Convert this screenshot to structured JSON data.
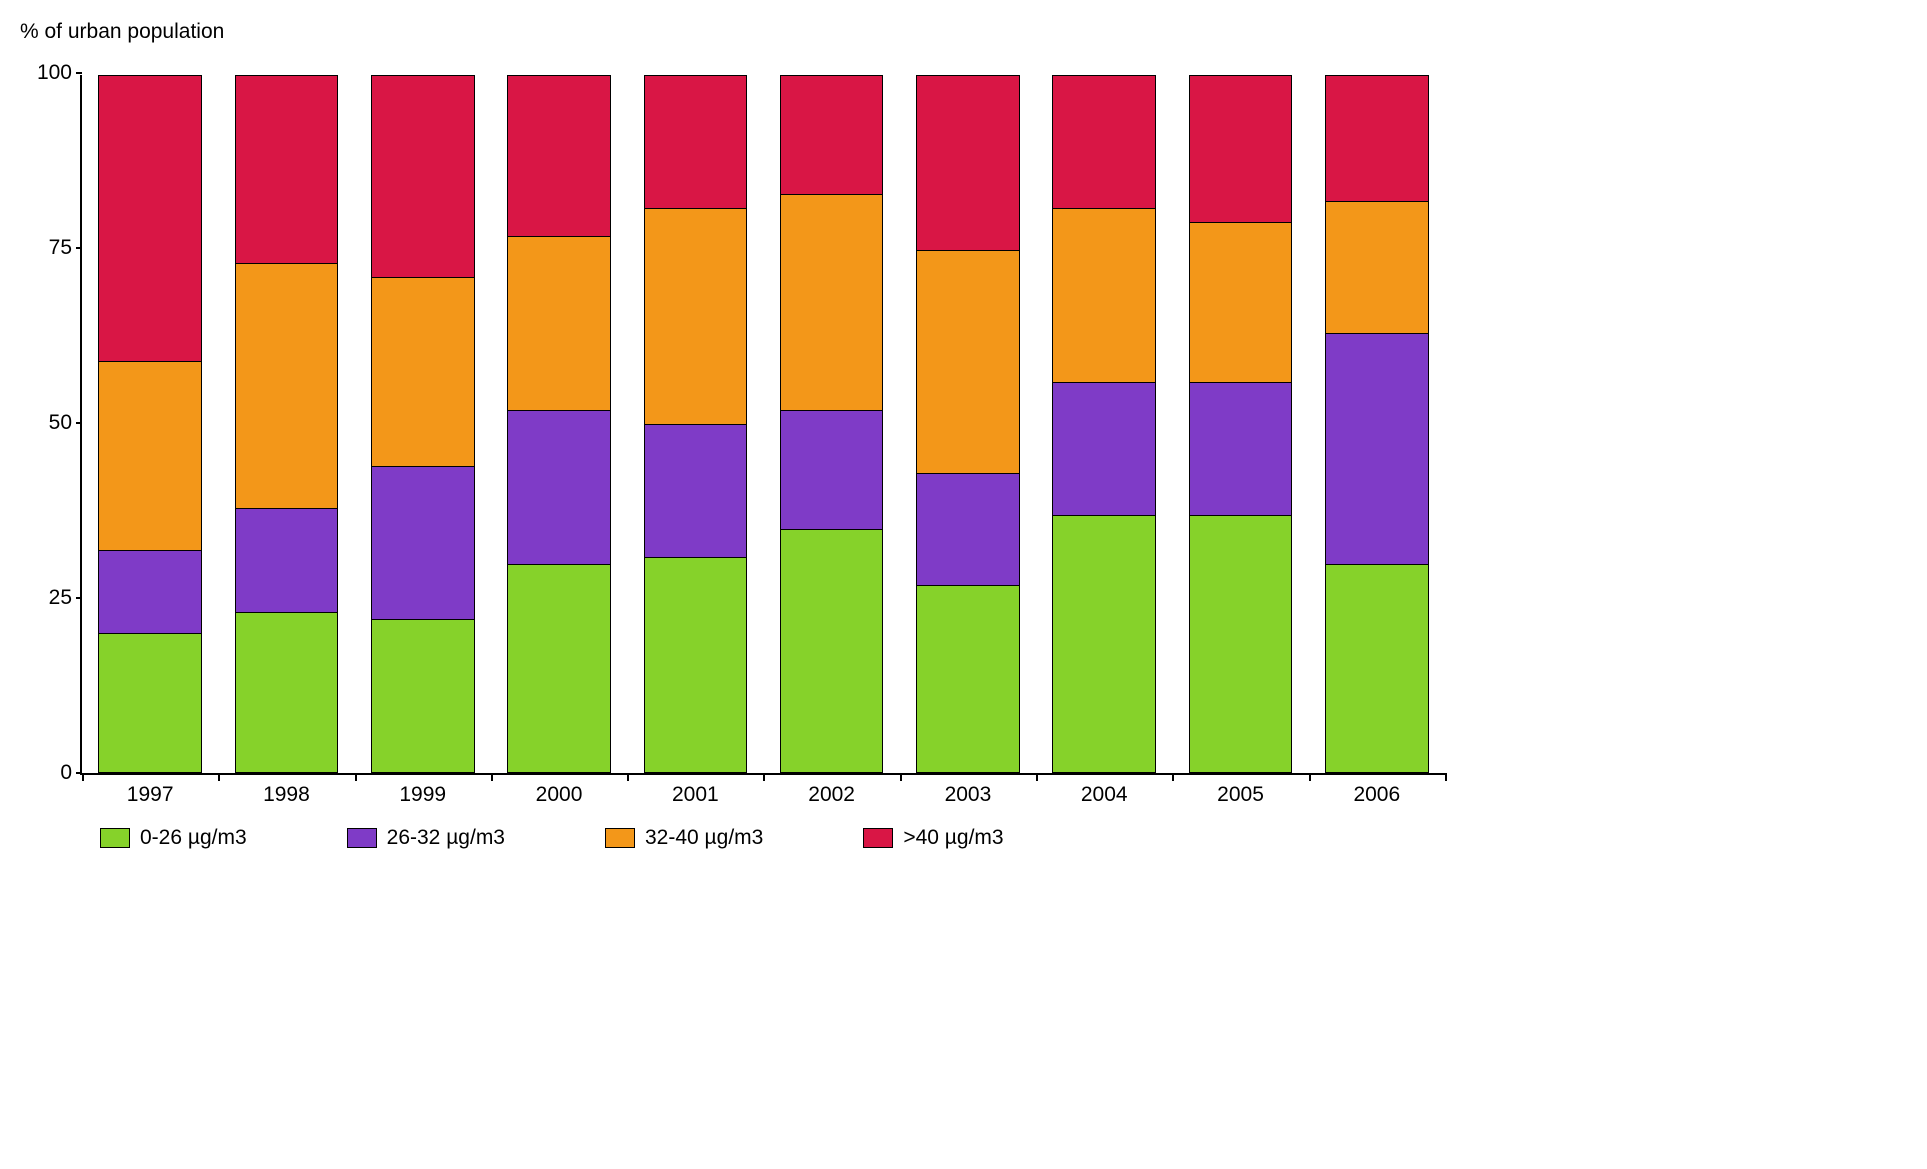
{
  "chart": {
    "type": "stacked-bar",
    "y_title": "% of urban population",
    "ylim": [
      0,
      100
    ],
    "yticks": [
      0,
      25,
      50,
      75,
      100
    ],
    "categories": [
      "1997",
      "1998",
      "1999",
      "2000",
      "2001",
      "2002",
      "2003",
      "2004",
      "2005",
      "2006"
    ],
    "series": [
      {
        "key": "s1",
        "label": "0-26 µg/m3",
        "color": "#86d22a"
      },
      {
        "key": "s2",
        "label": "26-32 µg/m3",
        "color": "#7f3bc7"
      },
      {
        "key": "s3",
        "label": "32-40 µg/m3",
        "color": "#f39719"
      },
      {
        "key": "s4",
        "label": ">40 µg/m3",
        "color": "#d91645"
      }
    ],
    "values": {
      "s1": [
        20,
        23,
        22,
        30,
        31,
        35,
        27,
        37,
        37,
        30
      ],
      "s2": [
        12,
        15,
        22,
        22,
        19,
        17,
        16,
        19,
        19,
        33
      ],
      "s3": [
        27,
        35,
        27,
        25,
        31,
        31,
        32,
        25,
        23,
        19
      ],
      "s4": [
        41,
        27,
        29,
        23,
        19,
        17,
        25,
        19,
        21,
        18
      ]
    },
    "bar_width_pct": 76,
    "background_color": "#ffffff",
    "axis_color": "#000000",
    "font_family": "Arial, Helvetica, sans-serif",
    "label_fontsize": 21,
    "title_fontsize": 21
  }
}
